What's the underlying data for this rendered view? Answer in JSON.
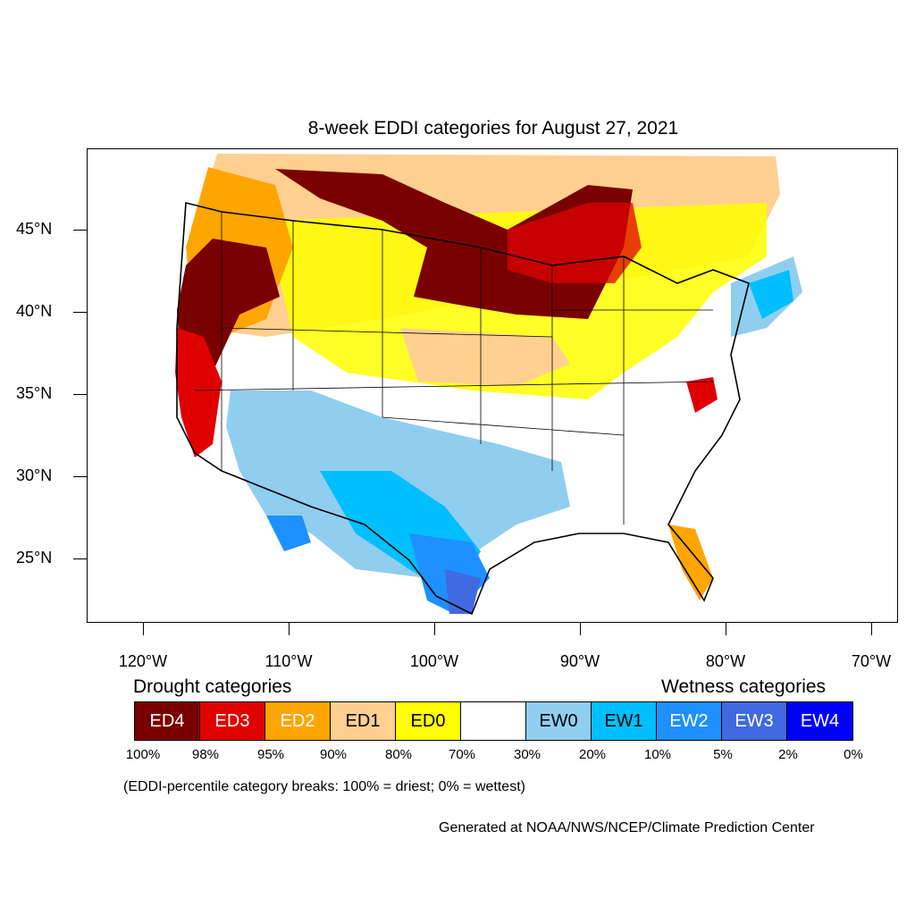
{
  "title": "8-week EDDI categories for August 27, 2021",
  "y_axis": [
    "45°N",
    "40°N",
    "35°N",
    "30°N",
    "25°N"
  ],
  "x_axis": [
    "120°W",
    "110°W",
    "100°W",
    "90°W",
    "80°W",
    "70°W"
  ],
  "drought_header": "Drought categories",
  "wetness_header": "Wetness categories",
  "legend": [
    {
      "label": "ED4",
      "color": "#7a0000",
      "text_color": "#ffffff"
    },
    {
      "label": "ED3",
      "color": "#e00000",
      "text_color": "#ffffff"
    },
    {
      "label": "ED2",
      "color": "#ffa500",
      "text_color": "#ffffff"
    },
    {
      "label": "ED1",
      "color": "#ffd090",
      "text_color": "#000000"
    },
    {
      "label": "ED0",
      "color": "#ffff00",
      "text_color": "#000000"
    },
    {
      "label": "",
      "color": "#ffffff",
      "text_color": "#000000"
    },
    {
      "label": "EW0",
      "color": "#90cef0",
      "text_color": "#000000"
    },
    {
      "label": "EW1",
      "color": "#00bfff",
      "text_color": "#000000"
    },
    {
      "label": "EW2",
      "color": "#1e90ff",
      "text_color": "#ffffff"
    },
    {
      "label": "EW3",
      "color": "#4169e1",
      "text_color": "#ffffff"
    },
    {
      "label": "EW4",
      "color": "#0000ff",
      "text_color": "#ffffff"
    }
  ],
  "percent_breaks": [
    "100%",
    "98%",
    "95%",
    "90%",
    "80%",
    "70%",
    "30%",
    "20%",
    "10%",
    "5%",
    "2%",
    "0%"
  ],
  "note": "(EDDI-percentile category breaks: 100% = driest; 0% = wettest)",
  "credit": "Generated at NOAA/NWS/NCEP/Climate Prediction Center"
}
